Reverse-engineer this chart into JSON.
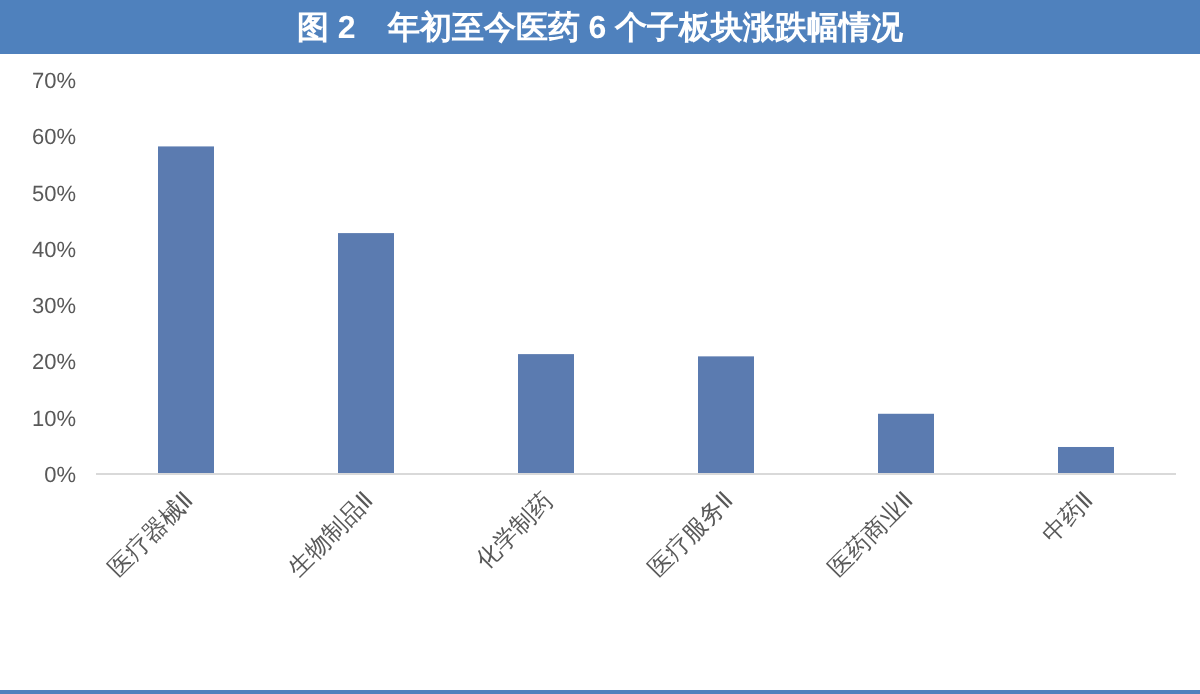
{
  "chart_data": {
    "type": "bar",
    "title": "图 2　年初至今医药 6 个子板块涨跌幅情况",
    "categories": [
      "医疗器械Ⅱ",
      "生物制品Ⅱ",
      "化学制药",
      "医疗服务Ⅱ",
      "医药商业Ⅱ",
      "中药Ⅱ"
    ],
    "series": [
      {
        "color": "#5b7bb0",
        "values": [
          58.2,
          42.8,
          21.3,
          20.9,
          10.7,
          4.8
        ]
      }
    ],
    "ylim": [
      0,
      70
    ],
    "yticks": [
      {
        "value": 0,
        "label": "0%"
      },
      {
        "value": 10,
        "label": "10%"
      },
      {
        "value": 20,
        "label": "20%"
      },
      {
        "value": 30,
        "label": "30%"
      },
      {
        "value": 40,
        "label": "40%"
      },
      {
        "value": 50,
        "label": "50%"
      },
      {
        "value": 60,
        "label": "60%"
      },
      {
        "value": 70,
        "label": "70%"
      }
    ],
    "grid": false
  }
}
